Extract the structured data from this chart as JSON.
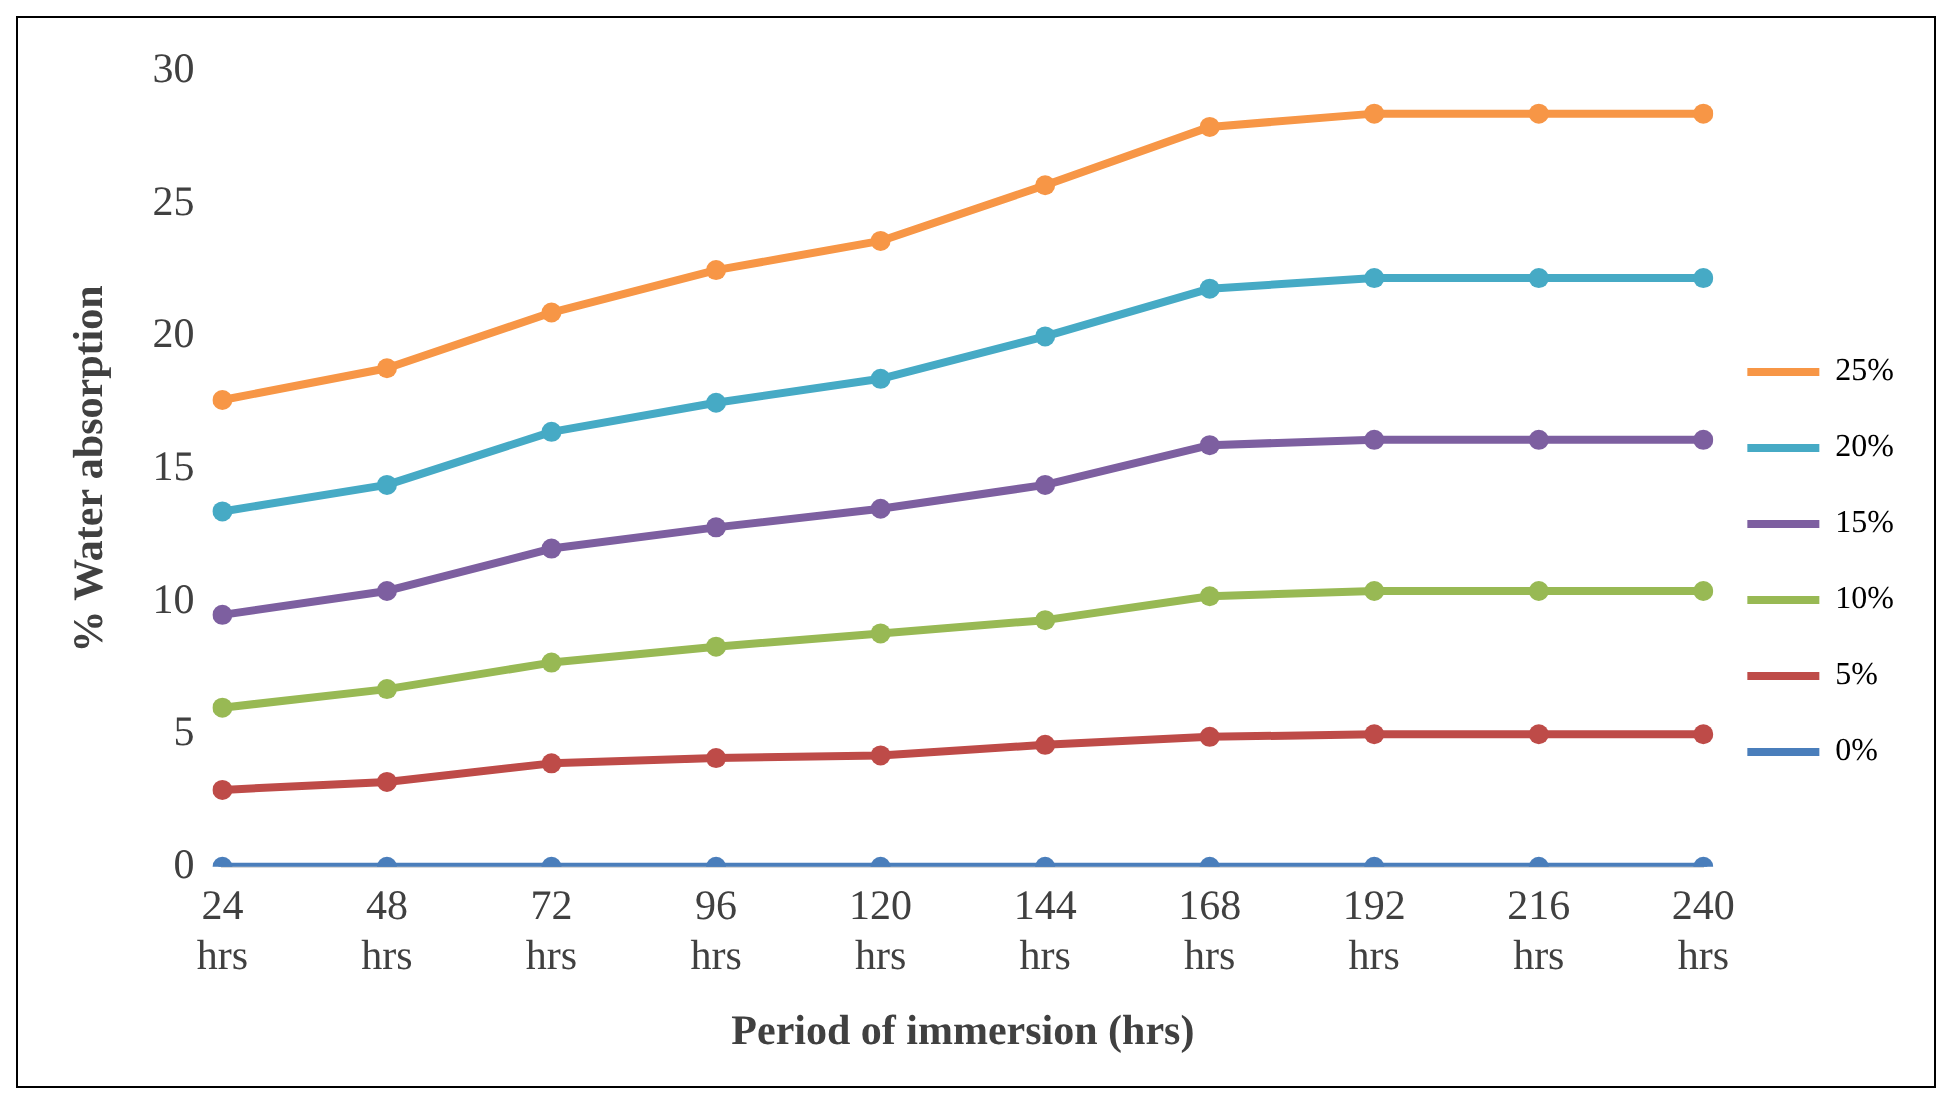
{
  "chart_data": {
    "type": "line",
    "xlabel": "Period of immersion (hrs)",
    "ylabel": "% Water absorption",
    "categories": [
      "24 hrs",
      "48 hrs",
      "72 hrs",
      "96 hrs",
      "120 hrs",
      "144 hrs",
      "168 hrs",
      "192 hrs",
      "216 hrs",
      "240 hrs"
    ],
    "series": [
      {
        "name": "0%",
        "color": "#4a7ebb",
        "values": [
          0,
          0,
          0,
          0,
          0,
          0,
          0,
          0,
          0,
          0
        ]
      },
      {
        "name": "5%",
        "color": "#be4b48",
        "values": [
          2.9,
          3.2,
          3.9,
          4.1,
          4.2,
          4.6,
          4.9,
          5.0,
          5.0,
          5.0
        ]
      },
      {
        "name": "10%",
        "color": "#98b954",
        "values": [
          6.0,
          6.7,
          7.7,
          8.3,
          8.8,
          9.3,
          10.2,
          10.4,
          10.4,
          10.4
        ]
      },
      {
        "name": "15%",
        "color": "#7d5fa0",
        "values": [
          9.5,
          10.4,
          12.0,
          12.8,
          13.5,
          14.4,
          15.9,
          16.1,
          16.1,
          16.1
        ]
      },
      {
        "name": "20%",
        "color": "#46aac5",
        "values": [
          13.4,
          14.4,
          16.4,
          17.5,
          18.4,
          20.0,
          21.8,
          22.2,
          22.2,
          22.2
        ]
      },
      {
        "name": "25%",
        "color": "#f79646",
        "values": [
          17.6,
          18.8,
          20.9,
          22.5,
          23.6,
          25.7,
          27.9,
          28.4,
          28.4,
          28.4
        ]
      }
    ],
    "ylim": [
      0,
      30
    ],
    "yticks": [
      0,
      5,
      10,
      15,
      20,
      25,
      30
    ],
    "grid": false,
    "legend": "right",
    "marker": "circle",
    "line_style": "solid"
  }
}
